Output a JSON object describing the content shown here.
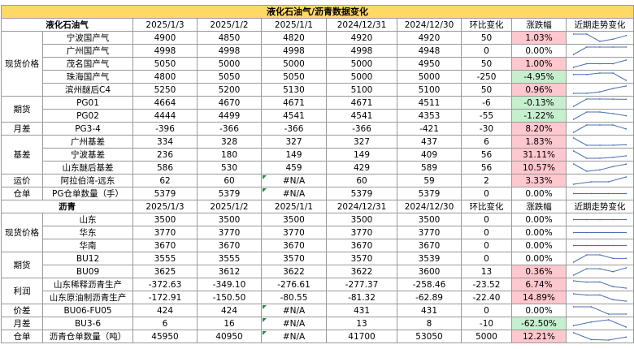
{
  "title": "液化石油气/沥青数据变化",
  "colors": {
    "title_bg": "#ffd966",
    "up_bg": "#ffc7ce",
    "down_bg": "#c6efce",
    "spark_line": "#4a6fb5",
    "error_flag": "#1f8a3b"
  },
  "sections": [
    {
      "name": "液化石油气",
      "headers": [
        "2025/1/3",
        "2025/1/2",
        "2025/1/1",
        "2024/12/31",
        "2024/12/30",
        "环比变化",
        "涨跌幅",
        "近期走势变化"
      ],
      "groups": [
        {
          "category": "现货价格",
          "rows": [
            {
              "item": "宁波国产气",
              "values": [
                "4900",
                "4850",
                "4820",
                "4920",
                "4920"
              ],
              "change": "50",
              "pct": "1.03%",
              "dir": "up"
            },
            {
              "item": "广州国产气",
              "values": [
                "4998",
                "4998",
                "4998",
                "4998",
                "4948"
              ],
              "change": "0",
              "pct": "0.00%",
              "dir": "flat"
            },
            {
              "item": "茂名国产气",
              "values": [
                "5050",
                "5000",
                "5000",
                "5000",
                "4950"
              ],
              "change": "50",
              "pct": "1.00%",
              "dir": "up"
            },
            {
              "item": "珠海国产气",
              "values": [
                "4800",
                "5050",
                "5050",
                "5000",
                "5000"
              ],
              "change": "-250",
              "pct": "-4.95%",
              "dir": "down"
            },
            {
              "item": "滨州醚后C4",
              "values": [
                "5250",
                "5200",
                "5130",
                "5100",
                "5100"
              ],
              "change": "50",
              "pct": "0.96%",
              "dir": "up"
            }
          ]
        },
        {
          "category": "期货",
          "rows": [
            {
              "item": "PG01",
              "values": [
                "4664",
                "4670",
                "4671",
                "4671",
                "4511"
              ],
              "change": "-6",
              "pct": "-0.13%",
              "dir": "down"
            },
            {
              "item": "PG02",
              "values": [
                "4444",
                "4499",
                "4541",
                "4541",
                "4353"
              ],
              "change": "-55",
              "pct": "-1.22%",
              "dir": "down"
            }
          ]
        },
        {
          "category": "月差",
          "rows": [
            {
              "item": "PG3-4",
              "values": [
                "-396",
                "-366",
                "-366",
                "-366",
                "-421"
              ],
              "change": "-30",
              "pct": "8.20%",
              "dir": "up"
            }
          ]
        },
        {
          "category": "基差",
          "rows": [
            {
              "item": "广州基差",
              "values": [
                "334",
                "328",
                "327",
                "327",
                "437"
              ],
              "change": "6",
              "pct": "1.83%",
              "dir": "up"
            },
            {
              "item": "宁波基差",
              "values": [
                "236",
                "180",
                "149",
                "149",
                "409"
              ],
              "change": "56",
              "pct": "31.11%",
              "dir": "up"
            },
            {
              "item": "山东醚后基差",
              "values": [
                "586",
                "530",
                "459",
                "429",
                "589"
              ],
              "change": "56",
              "pct": "10.57%",
              "dir": "up"
            }
          ]
        },
        {
          "category": "运价",
          "rows": [
            {
              "item": "阿拉伯湾-远东",
              "values": [
                "62",
                "60",
                "#N/A",
                "60",
                "59"
              ],
              "change": "2",
              "pct": "3.33%",
              "dir": "up"
            }
          ]
        },
        {
          "category": "仓单",
          "rows": [
            {
              "item": "PG仓单数量（手）",
              "values": [
                "5379",
                "5379",
                "#N/A",
                "5379",
                "5379"
              ],
              "change": "0",
              "pct": "0.00%",
              "dir": "flat"
            }
          ]
        }
      ]
    },
    {
      "name": "沥青",
      "headers": [
        "2025/1/3",
        "2025/1/2",
        "2025/1/1",
        "2024/12/31",
        "2024/12/30",
        "环比变化",
        "涨跌幅",
        "近期走势变化"
      ],
      "groups": [
        {
          "category": "现货价格",
          "rows": [
            {
              "item": "山东",
              "values": [
                "3500",
                "3500",
                "3500",
                "3500",
                "3500"
              ],
              "change": "0",
              "pct": "0.00%",
              "dir": "flat"
            },
            {
              "item": "华东",
              "values": [
                "3770",
                "3770",
                "3770",
                "3770",
                "3770"
              ],
              "change": "0",
              "pct": "0.00%",
              "dir": "flat"
            },
            {
              "item": "华南",
              "values": [
                "3670",
                "3670",
                "3670",
                "3670",
                "3670"
              ],
              "change": "0",
              "pct": "0.00%",
              "dir": "flat"
            }
          ]
        },
        {
          "category": "期货",
          "rows": [
            {
              "item": "BU12",
              "values": [
                "3555",
                "3555",
                "3570",
                "3570",
                "3539"
              ],
              "change": "0",
              "pct": "0.00%",
              "dir": "flat"
            },
            {
              "item": "BU09",
              "values": [
                "3625",
                "3612",
                "3622",
                "3622",
                "3600"
              ],
              "change": "13",
              "pct": "0.36%",
              "dir": "up"
            }
          ]
        },
        {
          "category": "利润",
          "rows": [
            {
              "item": "山东稀释沥青生产",
              "values": [
                "-372.63",
                "-349.10",
                "-276.61",
                "-277.37",
                "-258.46"
              ],
              "change": "-23.52",
              "pct": "6.74%",
              "dir": "up"
            },
            {
              "item": "山东原油制沥青生产",
              "values": [
                "-172.91",
                "-150.50",
                "-80.55",
                "-81.32",
                "-62.89"
              ],
              "change": "-22.40",
              "pct": "14.89%",
              "dir": "up"
            }
          ]
        },
        {
          "category": "价差",
          "rows": [
            {
              "item": "BU06-FU05",
              "values": [
                "424",
                "424",
                "#N/A",
                "431",
                "431"
              ],
              "change": "0",
              "pct": "0.00%",
              "dir": "flat"
            }
          ]
        },
        {
          "category": "月差",
          "rows": [
            {
              "item": "BU3-6",
              "values": [
                "6",
                "16",
                "#N/A",
                "13",
                "8"
              ],
              "change": "-10",
              "pct": "-62.50%",
              "dir": "down"
            }
          ]
        },
        {
          "category": "仓单",
          "rows": [
            {
              "item": "沥青仓单数量（吨）",
              "values": [
                "45950",
                "40950",
                "#N/A",
                "41700",
                "53050"
              ],
              "change": "5000",
              "pct": "12.21%",
              "dir": "up"
            }
          ]
        }
      ]
    }
  ]
}
